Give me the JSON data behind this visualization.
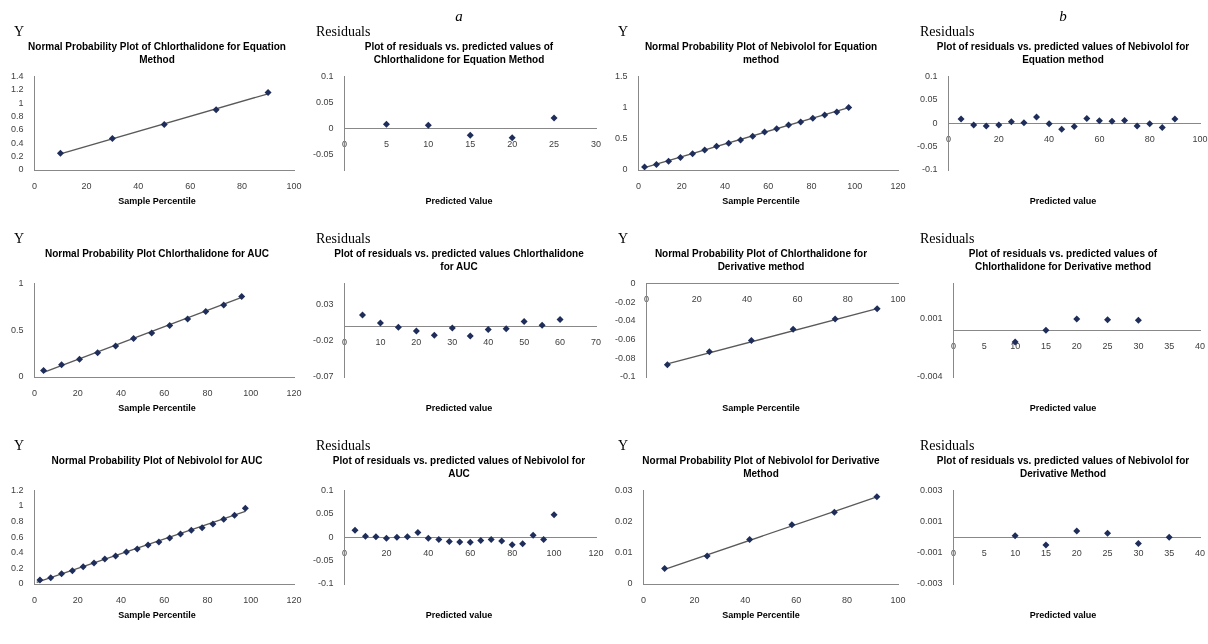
{
  "chart_data": [
    {
      "type": "scatter",
      "title": "Normal Probability Plot of Chlorthalidone for Equation Method",
      "xlabel": "Sample Percentile",
      "ylabel": "Y",
      "grid": false,
      "xlim": [
        0,
        100
      ],
      "xticks": [
        0,
        20,
        40,
        60,
        80,
        100
      ],
      "ylim": [
        0,
        1.4
      ],
      "yticks": [
        0,
        0.2,
        0.4,
        0.6,
        0.8,
        1,
        1.2,
        1.4
      ],
      "series": [
        {
          "type": "scatter",
          "marker": "diamond",
          "color": "#1f2d5a",
          "x": [
            10,
            30,
            50,
            70,
            90
          ],
          "values": [
            0.25,
            0.47,
            0.68,
            0.9,
            1.16
          ]
        },
        {
          "type": "line",
          "marker": "none",
          "color": "#595959",
          "x": [
            10,
            90
          ],
          "values": [
            0.24,
            1.14
          ]
        }
      ]
    },
    {
      "type": "scatter",
      "title": "Plot of residuals vs. predicted values of Chlorthalidone for Equation Method",
      "xlabel": "Predicted Value",
      "ylabel": "Residuals",
      "annotations": [
        "a"
      ],
      "marker": "diamond",
      "grid": false,
      "xlim": [
        0,
        30
      ],
      "xticks": [
        0,
        5,
        10,
        15,
        20,
        25,
        30
      ],
      "ylim": [
        -0.08,
        0.1
      ],
      "yticks": [
        -0.05,
        0,
        0.05,
        0.1
      ],
      "series": [
        {
          "type": "scatter",
          "color": "#1f2d5a",
          "x": [
            5,
            10,
            15,
            20,
            25
          ],
          "values": [
            0.008,
            0.006,
            -0.013,
            -0.018,
            0.02
          ]
        }
      ]
    },
    {
      "type": "scatter",
      "title": "Normal Probability Plot of Nebivolol for Equation method",
      "xlabel": "Sample Percentile",
      "ylabel": "Y",
      "grid": false,
      "xlim": [
        0,
        120
      ],
      "xticks": [
        0,
        20,
        40,
        60,
        80,
        100,
        120
      ],
      "ylim": [
        0,
        1.5
      ],
      "yticks": [
        0,
        0.5,
        1,
        1.5
      ],
      "series": [
        {
          "type": "scatter",
          "marker": "diamond",
          "color": "#1f2d5a",
          "x": [
            2.8,
            8.3,
            13.9,
            19.4,
            25,
            30.6,
            36.1,
            41.7,
            47.2,
            52.8,
            58.3,
            63.9,
            69.4,
            75,
            80.6,
            86.1,
            91.7,
            97.2
          ],
          "values": [
            0.05,
            0.09,
            0.14,
            0.2,
            0.26,
            0.32,
            0.38,
            0.43,
            0.48,
            0.54,
            0.61,
            0.66,
            0.72,
            0.77,
            0.83,
            0.88,
            0.93,
            1
          ]
        },
        {
          "type": "line",
          "marker": "none",
          "color": "#595959",
          "x": [
            2.8,
            97.2
          ],
          "values": [
            0.04,
            1
          ]
        }
      ]
    },
    {
      "type": "scatter",
      "title": "Plot of residuals vs. predicted values of Nebivolol for Equation method",
      "xlabel": "Predicted value",
      "ylabel": "Residuals",
      "annotations": [
        "b"
      ],
      "marker": "diamond",
      "grid": false,
      "xlim": [
        0,
        100
      ],
      "xticks": [
        0,
        20,
        40,
        60,
        80,
        100
      ],
      "ylim": [
        -0.1,
        0.1
      ],
      "yticks": [
        -0.1,
        -0.05,
        0,
        0.05,
        0.1
      ],
      "series": [
        {
          "type": "scatter",
          "color": "#1f2d5a",
          "x": [
            5,
            10,
            15,
            20,
            25,
            30,
            35,
            40,
            45,
            50,
            55,
            60,
            65,
            70,
            75,
            80,
            85,
            90
          ],
          "values": [
            0.009,
            -0.004,
            -0.006,
            -0.004,
            0.003,
            0.001,
            0.013,
            -0.001,
            -0.013,
            -0.007,
            0.01,
            0.005,
            0.004,
            0.006,
            -0.006,
            -0.001,
            -0.009,
            0.009
          ]
        }
      ]
    },
    {
      "type": "scatter",
      "title": "Normal Probability Plot Chlorthalidone for AUC",
      "xlabel": "Sample Percentile",
      "ylabel": "Y",
      "grid": false,
      "xlim": [
        0,
        120
      ],
      "xticks": [
        0,
        20,
        40,
        60,
        80,
        100,
        120
      ],
      "ylim": [
        0,
        1
      ],
      "yticks": [
        0,
        0.5,
        1
      ],
      "series": [
        {
          "type": "scatter",
          "marker": "diamond",
          "color": "#1f2d5a",
          "x": [
            4.2,
            12.5,
            20.8,
            29.2,
            37.5,
            45.8,
            54.2,
            62.5,
            70.8,
            79.2,
            87.5,
            95.8
          ],
          "values": [
            0.07,
            0.13,
            0.19,
            0.26,
            0.33,
            0.41,
            0.47,
            0.55,
            0.62,
            0.7,
            0.77,
            0.86
          ]
        },
        {
          "type": "line",
          "marker": "none",
          "color": "#595959",
          "x": [
            4.2,
            95.8
          ],
          "values": [
            0.05,
            0.85
          ]
        }
      ]
    },
    {
      "type": "scatter",
      "title": "Plot of residuals vs. predicted values Chlorthalidone for AUC",
      "xlabel": "Predicted value",
      "ylabel": "Residuals",
      "marker": "diamond",
      "grid": false,
      "xlim": [
        0,
        70
      ],
      "xticks": [
        0,
        10,
        20,
        30,
        40,
        50,
        60,
        70
      ],
      "ylim": [
        -0.07,
        0.06
      ],
      "yticks": [
        -0.07,
        -0.02,
        0.03
      ],
      "series": [
        {
          "type": "scatter",
          "color": "#1f2d5a",
          "x": [
            5,
            10,
            15,
            20,
            25,
            30,
            35,
            40,
            45,
            50,
            55,
            60
          ],
          "values": [
            0.016,
            0.005,
            -0.001,
            -0.006,
            -0.012,
            -0.002,
            -0.013,
            -0.004,
            -0.003,
            0.007,
            0.002,
            0.01
          ]
        }
      ]
    },
    {
      "type": "scatter",
      "title": "Normal Probability Plot of Chlorthalidone for Derivative method",
      "xlabel": "Sample Percentile",
      "ylabel": "Y",
      "grid": false,
      "xlim": [
        0,
        100
      ],
      "xticks": [
        0,
        20,
        40,
        60,
        80,
        100
      ],
      "ylim": [
        -0.1,
        0
      ],
      "yticks": [
        -0.1,
        -0.08,
        -0.06,
        -0.04,
        -0.02,
        0
      ],
      "series": [
        {
          "type": "scatter",
          "marker": "diamond",
          "color": "#1f2d5a",
          "x": [
            8.3,
            25,
            41.7,
            58.3,
            75,
            91.7
          ],
          "values": [
            -0.087,
            -0.073,
            -0.061,
            -0.049,
            -0.038,
            -0.027
          ]
        },
        {
          "type": "line",
          "marker": "none",
          "color": "#595959",
          "x": [
            8.3,
            91.7
          ],
          "values": [
            -0.086,
            -0.027
          ]
        }
      ]
    },
    {
      "type": "scatter",
      "title": "Plot of residuals vs. predicted values of Chlorthalidone for Derivative method",
      "xlabel": "Predicted value",
      "ylabel": "Residuals",
      "marker": "diamond",
      "grid": false,
      "xlim": [
        0,
        40
      ],
      "xticks": [
        0,
        5,
        10,
        15,
        20,
        25,
        30,
        35,
        40
      ],
      "ylim": [
        -0.004,
        0.004
      ],
      "yticks": [
        -0.004,
        0.001
      ],
      "series": [
        {
          "type": "scatter",
          "color": "#1f2d5a",
          "x": [
            10,
            15,
            20,
            25,
            30
          ],
          "values": [
            -0.001,
            0,
            0.00095,
            0.0009,
            0.00085
          ]
        }
      ]
    },
    {
      "type": "scatter",
      "title": "Normal Probability Plot of  Nebivolol for AUC",
      "xlabel": "Sample Percentile",
      "ylabel": "Y",
      "grid": false,
      "xlim": [
        0,
        120
      ],
      "xticks": [
        0,
        20,
        40,
        60,
        80,
        100,
        120
      ],
      "ylim": [
        0,
        1.2
      ],
      "yticks": [
        0,
        0.2,
        0.4,
        0.6,
        0.8,
        1,
        1.2
      ],
      "series": [
        {
          "type": "scatter",
          "marker": "diamond",
          "color": "#1f2d5a",
          "x": [
            2.5,
            7.5,
            12.5,
            17.5,
            22.5,
            27.5,
            32.5,
            37.5,
            42.5,
            47.5,
            52.5,
            57.5,
            62.5,
            67.5,
            72.5,
            77.5,
            82.5,
            87.5,
            92.5,
            97.5
          ],
          "values": [
            0.05,
            0.08,
            0.13,
            0.17,
            0.22,
            0.27,
            0.32,
            0.36,
            0.41,
            0.45,
            0.5,
            0.54,
            0.59,
            0.64,
            0.69,
            0.72,
            0.77,
            0.83,
            0.88,
            0.97
          ]
        },
        {
          "type": "line",
          "marker": "none",
          "color": "#595959",
          "x": [
            1,
            97.5
          ],
          "values": [
            0.02,
            0.93
          ]
        }
      ]
    },
    {
      "type": "scatter",
      "title": "Plot of residuals vs. predicted values of Nebivolol for AUC",
      "xlabel": "Predicted value",
      "ylabel": "Residuals",
      "marker": "diamond",
      "grid": false,
      "xlim": [
        0,
        120
      ],
      "xticks": [
        0,
        20,
        40,
        60,
        80,
        100,
        120
      ],
      "ylim": [
        -0.1,
        0.1
      ],
      "yticks": [
        -0.1,
        -0.05,
        0,
        0.05,
        0.1
      ],
      "series": [
        {
          "type": "scatter",
          "color": "#1f2d5a",
          "x": [
            5,
            10,
            15,
            20,
            25,
            30,
            35,
            40,
            45,
            50,
            55,
            60,
            65,
            70,
            75,
            80,
            85,
            90,
            95,
            100
          ],
          "values": [
            0.015,
            0.002,
            0.001,
            -0.002,
            0,
            0.001,
            0.01,
            -0.002,
            -0.005,
            -0.009,
            -0.01,
            -0.011,
            -0.007,
            -0.005,
            -0.008,
            -0.016,
            -0.014,
            0.004,
            -0.005,
            0.048
          ]
        }
      ]
    },
    {
      "type": "scatter",
      "title": "Normal Probability Plot of  Nebivolol for Derivative Method",
      "xlabel": "Sample Percentile",
      "ylabel": "Y",
      "grid": false,
      "xlim": [
        0,
        100
      ],
      "xticks": [
        0,
        20,
        40,
        60,
        80,
        100
      ],
      "ylim": [
        0,
        0.03
      ],
      "yticks": [
        0,
        0.01,
        0.02,
        0.03
      ],
      "series": [
        {
          "type": "scatter",
          "marker": "diamond",
          "color": "#1f2d5a",
          "x": [
            8.3,
            25,
            41.7,
            58.3,
            75,
            91.7
          ],
          "values": [
            0.005,
            0.009,
            0.0143,
            0.019,
            0.023,
            0.028
          ]
        },
        {
          "type": "line",
          "marker": "none",
          "color": "#595959",
          "x": [
            8.3,
            91.7
          ],
          "values": [
            0.0047,
            0.0279
          ]
        }
      ]
    },
    {
      "type": "scatter",
      "title": "Plot of residuals vs. predicted values of Nebivolol for Derivative Method",
      "xlabel": "Predicted value",
      "ylabel": "Residuals",
      "marker": "diamond",
      "grid": false,
      "xlim": [
        0,
        40
      ],
      "xticks": [
        0,
        5,
        10,
        15,
        20,
        25,
        30,
        35,
        40
      ],
      "ylim": [
        -0.003,
        0.003
      ],
      "yticks": [
        -0.003,
        -0.001,
        0.001,
        0.003
      ],
      "series": [
        {
          "type": "scatter",
          "color": "#1f2d5a",
          "x": [
            10,
            15,
            20,
            25,
            30,
            35
          ],
          "values": [
            0.0001,
            -0.0005,
            0.0004,
            0.00025,
            -0.0004,
            0
          ]
        }
      ]
    }
  ]
}
